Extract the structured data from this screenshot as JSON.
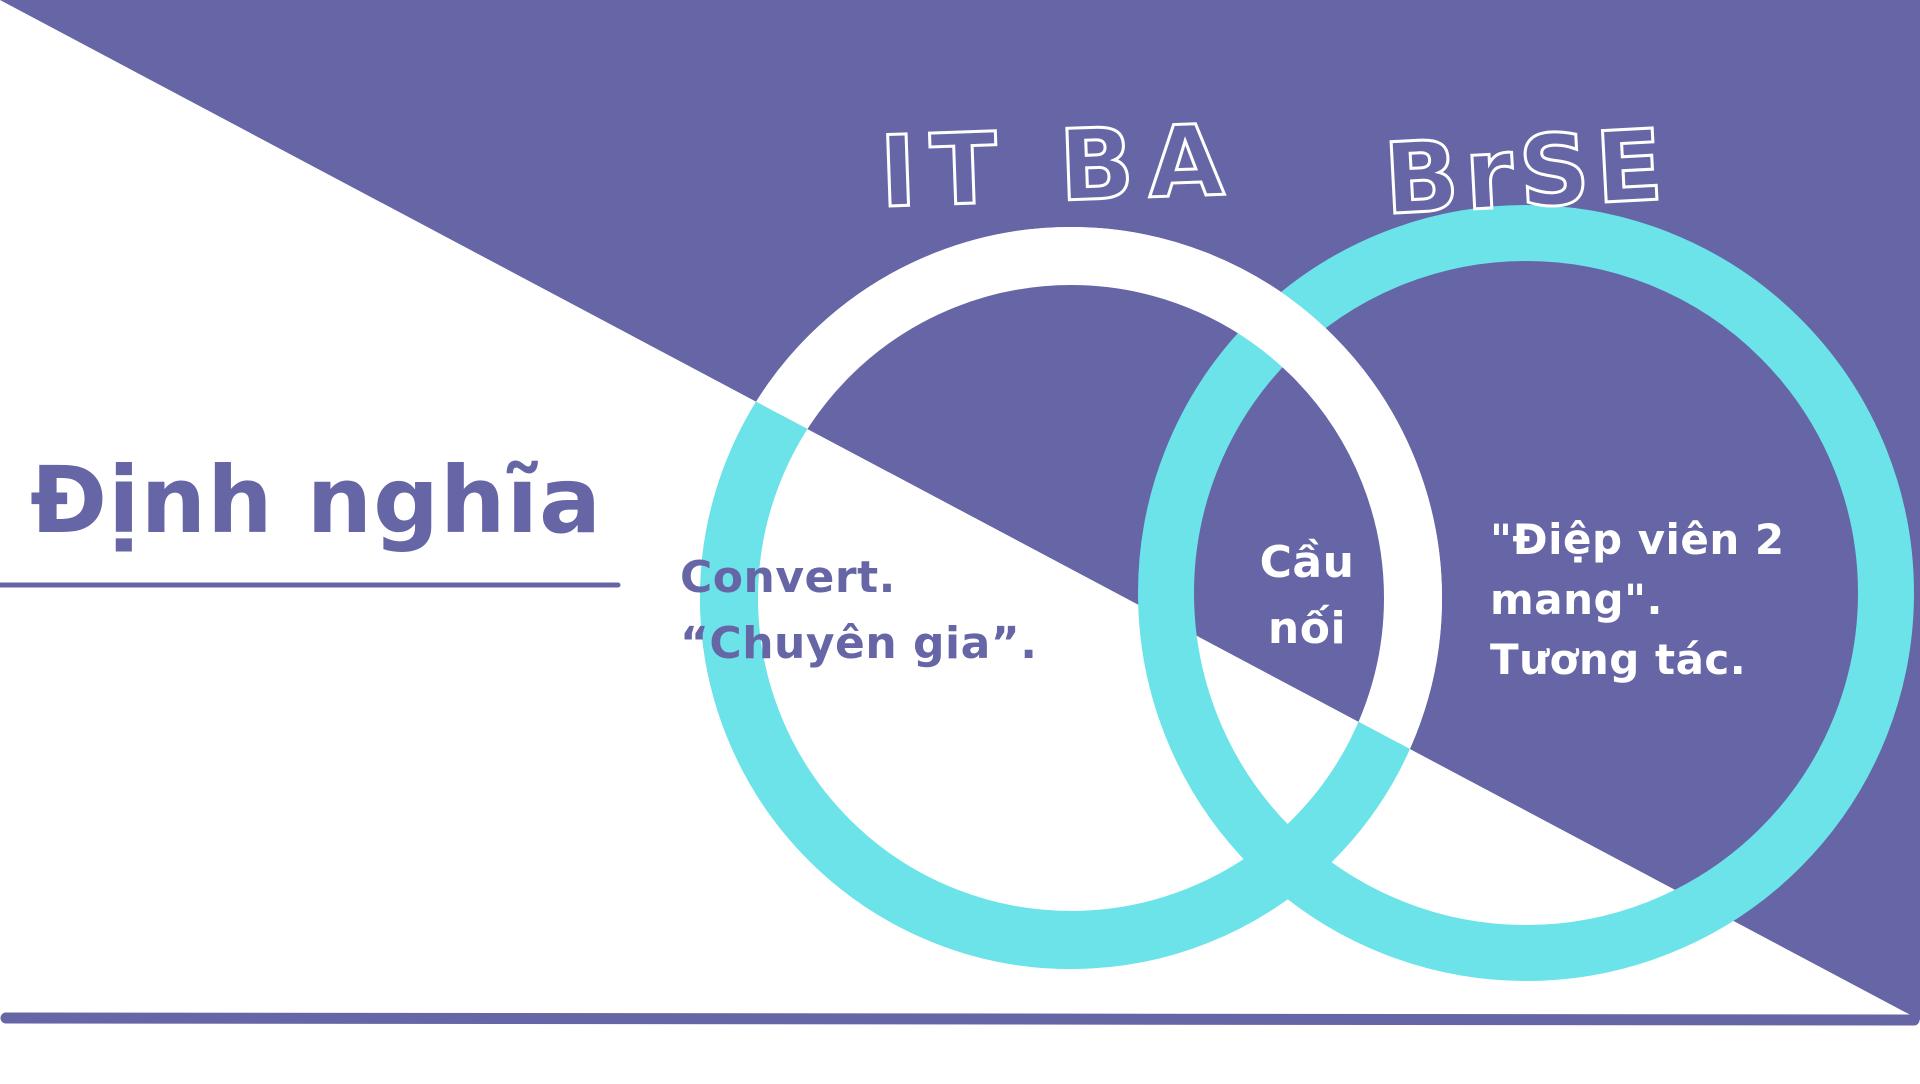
{
  "colors": {
    "purple": "#6665a5",
    "cyan": "#6be3e8",
    "white": "#ffffff"
  },
  "heading": "Định nghĩa",
  "circles": {
    "left_title": "IT BA",
    "right_title": "BrSE"
  },
  "it_ba": {
    "lines": [
      "Convert.",
      "“Chuyên gia”."
    ]
  },
  "overlap": {
    "lines": [
      "Cầu",
      "nối"
    ]
  },
  "brse": {
    "lines": [
      "\"Điệp viên 2",
      "mang\".",
      "Tương tác."
    ]
  }
}
